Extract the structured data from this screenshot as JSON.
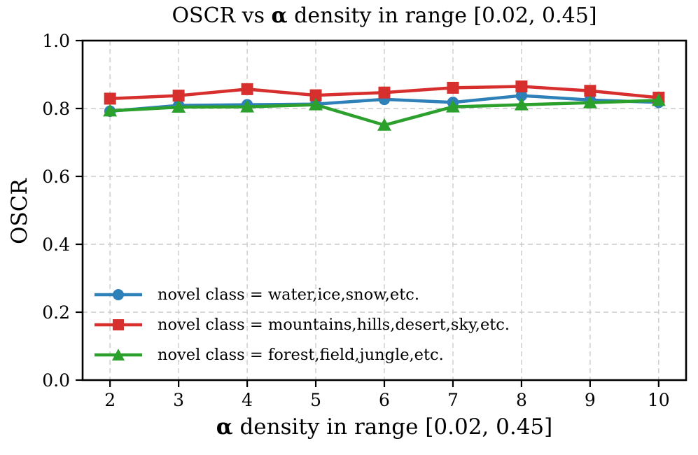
{
  "figure": {
    "title": {
      "pre": "OSCR vs ",
      "alpha": "α",
      "post": " density in range [0.02, 0.45]"
    },
    "xlabel": {
      "alpha": "α",
      "post": " density in range [0.02, 0.45]"
    },
    "ylabel": "OSCR"
  },
  "chart_data": {
    "type": "line",
    "title": "OSCR vs α density in range [0.02, 0.45]",
    "xlabel": "α density in range [0.02, 0.45]",
    "ylabel": "OSCR",
    "x": [
      2,
      3,
      4,
      5,
      6,
      7,
      8,
      9,
      10
    ],
    "xtick_labels": [
      "2",
      "3",
      "4",
      "5",
      "6",
      "7",
      "8",
      "9",
      "10"
    ],
    "ytick_values": [
      0.0,
      0.2,
      0.4,
      0.6,
      0.8,
      1.0
    ],
    "ytick_labels": [
      "0.0",
      "0.2",
      "0.4",
      "0.6",
      "0.8",
      "1.0"
    ],
    "xlim": [
      1.6,
      10.4
    ],
    "ylim": [
      0.0,
      1.0
    ],
    "grid": true,
    "grid_style": "dashed",
    "legend_position": "lower left",
    "colors": {
      "grid": "#cccccc",
      "axis": "#000000",
      "background": "#ffffff"
    },
    "series": [
      {
        "name": "novel class = water,ice,snow,etc.",
        "marker": "circle",
        "color": "#2e80b9",
        "values": [
          0.792,
          0.809,
          0.811,
          0.813,
          0.827,
          0.818,
          0.838,
          0.825,
          0.818
        ]
      },
      {
        "name": "novel class = mountains,hills,desert,sky,etc.",
        "marker": "square",
        "color": "#d62f2e",
        "values": [
          0.829,
          0.838,
          0.857,
          0.839,
          0.847,
          0.861,
          0.865,
          0.852,
          0.832
        ]
      },
      {
        "name": "novel class = forest,field,jungle,etc.",
        "marker": "triangle",
        "color": "#2ca02c",
        "values": [
          0.793,
          0.804,
          0.805,
          0.811,
          0.751,
          0.805,
          0.811,
          0.817,
          0.824
        ]
      }
    ]
  }
}
